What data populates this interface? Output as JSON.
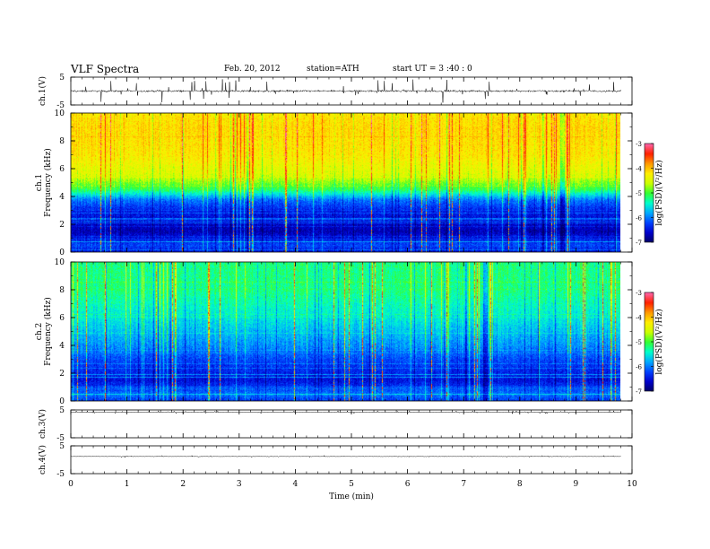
{
  "header": {
    "title": "VLF  Spectra",
    "date": "Feb. 20, 2012",
    "station": "station=ATH",
    "start": "start  UT  =   3  :40 : 0"
  },
  "chart_data": {
    "type": "heatmap",
    "x_axis": {
      "label": "Time  (min)",
      "range": [
        0,
        10
      ],
      "ticks": [
        "0",
        "1",
        "2",
        "3",
        "4",
        "5",
        "6",
        "7",
        "8",
        "9",
        "10"
      ],
      "data_end_min": 9.8
    },
    "panels": [
      {
        "id": "ch1-waveform",
        "type": "line",
        "ylabel": "ch.1(V)",
        "ylim": [
          -5,
          5
        ],
        "ticks": [
          "5",
          "-5"
        ],
        "baseline": 0,
        "spread": 0.5,
        "spike_amplitude": 4,
        "description_color": "#000000"
      },
      {
        "id": "ch1-spectrogram",
        "type": "heatmap",
        "ylabel_top": "ch.1",
        "ylabel": "Frequency  (kHz)",
        "ylim": [
          0,
          10
        ],
        "ticks": [
          "0",
          "2",
          "4",
          "6",
          "8",
          "10"
        ],
        "profile_kHz_logpsd": [
          [
            0,
            -6.5
          ],
          [
            0.5,
            -6.2
          ],
          [
            1.5,
            -6.7
          ],
          [
            3.0,
            -6.4
          ],
          [
            3.8,
            -6.0
          ],
          [
            4.5,
            -5.1
          ],
          [
            5.5,
            -4.5
          ],
          [
            7.0,
            -4.2
          ],
          [
            9.0,
            -4.1
          ],
          [
            10.0,
            -4.2
          ]
        ],
        "colorbar": {
          "label": "log(PSD)(V²/Hz)",
          "range": [
            -7,
            -3
          ],
          "ticks": [
            "-3",
            "-4",
            "-5",
            "-6",
            "-7"
          ]
        }
      },
      {
        "id": "ch2-spectrogram",
        "type": "heatmap",
        "ylabel_top": "ch.2",
        "ylabel": "Frequency  (kHz)",
        "ylim": [
          0,
          10
        ],
        "ticks": [
          "0",
          "2",
          "4",
          "6",
          "8",
          "10"
        ],
        "profile_kHz_logpsd": [
          [
            0,
            -6.3
          ],
          [
            0.5,
            -6.0
          ],
          [
            1.5,
            -6.5
          ],
          [
            3.0,
            -6.2
          ],
          [
            4.0,
            -5.9
          ],
          [
            5.0,
            -5.7
          ],
          [
            6.0,
            -5.5
          ],
          [
            8.0,
            -5.2
          ],
          [
            10.0,
            -5.2
          ]
        ],
        "colorbar": {
          "label": "log(PSD)(V²/Hz)",
          "range": [
            -7,
            -3
          ],
          "ticks": [
            "-3",
            "-4",
            "-5",
            "-6",
            "-7"
          ]
        }
      },
      {
        "id": "ch3-waveform",
        "type": "line",
        "ylabel": "ch.3(V)",
        "ylim": [
          -5,
          5
        ],
        "ticks": [
          "5",
          "-5"
        ],
        "baseline": 4.2,
        "spread": 0.1,
        "spike_amplitude": 0.6
      },
      {
        "id": "ch4-waveform",
        "type": "line",
        "ylabel": "ch.4(V)",
        "ylim": [
          -5,
          5
        ],
        "ticks": [
          "5",
          "-5"
        ],
        "baseline": 1.2,
        "spread": 0.15,
        "spike_amplitude": 0.3
      }
    ],
    "colormap": [
      "#000066",
      "#0000cc",
      "#0044ff",
      "#00aaff",
      "#00ffcc",
      "#33ff33",
      "#ccff00",
      "#ffee00",
      "#ff9900",
      "#ff2200",
      "#ff66aa"
    ]
  }
}
